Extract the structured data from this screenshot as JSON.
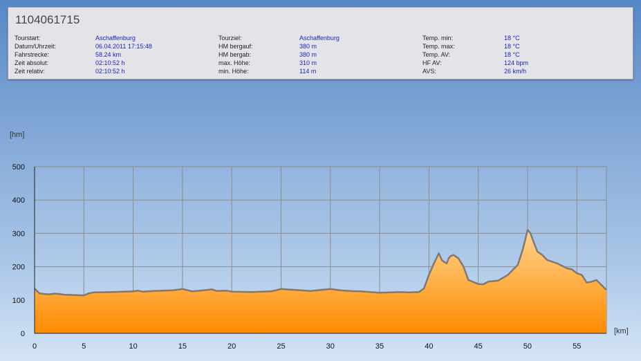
{
  "header": {
    "title": "1104061715",
    "columns": [
      [
        {
          "label": "Tourstart:",
          "value": "Aschaffenburg"
        },
        {
          "label": "Datum/Uhrzeit:",
          "value": "06.04.2011 17:15:48"
        },
        {
          "label": "Fahrstrecke:",
          "value": "58.24 km"
        },
        {
          "label": "Zeit absolut:",
          "value": "02:10:52 h"
        },
        {
          "label": "Zeit relativ:",
          "value": "02:10:52 h"
        }
      ],
      [
        {
          "label": "Tourziel:",
          "value": "Aschaffenburg"
        },
        {
          "label": "HM bergauf:",
          "value": "380 m"
        },
        {
          "label": "HM bergab:",
          "value": "380 m"
        },
        {
          "label": "max. Höhe:",
          "value": "310 m"
        },
        {
          "label": "min. Höhe:",
          "value": "114 m"
        }
      ],
      [
        {
          "label": "Temp. min:",
          "value": "18 °C"
        },
        {
          "label": "Temp. max:",
          "value": "18 °C"
        },
        {
          "label": "Temp. AV:",
          "value": "18 °C"
        },
        {
          "label": "HF AV:",
          "value": "124 bpm"
        },
        {
          "label": "AVS:",
          "value": "26 km/h"
        }
      ]
    ]
  },
  "chart_data": {
    "type": "area",
    "xlabel": "[km]",
    "ylabel": "[hm]",
    "xlim": [
      0,
      58
    ],
    "ylim": [
      0,
      500
    ],
    "xticks": [
      0,
      5,
      10,
      15,
      20,
      25,
      30,
      35,
      40,
      45,
      50,
      55
    ],
    "yticks": [
      0,
      100,
      200,
      300,
      400,
      500
    ],
    "grid": true,
    "fill_color_top": "#ffd590",
    "fill_color_bottom": "#ff8a00",
    "line_color": "#7a7a7a",
    "grid_color": "#8c8c8c",
    "x": [
      0,
      0.5,
      1,
      1.5,
      2,
      2.5,
      3,
      4,
      5,
      5.5,
      6,
      8,
      10,
      10.5,
      11,
      12,
      14,
      15,
      16,
      17.5,
      18,
      18.5,
      19.5,
      20,
      22,
      24,
      25,
      26,
      26.5,
      27,
      28,
      29,
      30,
      31,
      32,
      33,
      34,
      35,
      36,
      37,
      38,
      39,
      39.5,
      40,
      40.5,
      41,
      41.3,
      41.5,
      41.8,
      42,
      42.2,
      42.5,
      43,
      43.5,
      44,
      45,
      45.5,
      46,
      47,
      48,
      48.5,
      49,
      49.5,
      49.8,
      50,
      50.3,
      50.6,
      51,
      51.5,
      52,
      53,
      54,
      54.5,
      55,
      55.5,
      56,
      56.5,
      57,
      57.5,
      58
    ],
    "y": [
      134,
      120,
      118,
      117,
      119,
      118,
      116,
      115,
      114,
      120,
      123,
      124,
      126,
      128,
      125,
      127,
      129,
      133,
      126,
      130,
      132,
      127,
      128,
      125,
      124,
      126,
      133,
      131,
      130,
      129,
      127,
      130,
      133,
      129,
      127,
      126,
      124,
      122,
      123,
      124,
      123,
      124,
      135,
      175,
      210,
      240,
      220,
      215,
      210,
      225,
      232,
      235,
      225,
      200,
      160,
      148,
      147,
      155,
      158,
      175,
      190,
      205,
      250,
      285,
      310,
      300,
      275,
      245,
      235,
      220,
      210,
      195,
      192,
      180,
      175,
      152,
      155,
      160,
      145,
      130
    ]
  }
}
